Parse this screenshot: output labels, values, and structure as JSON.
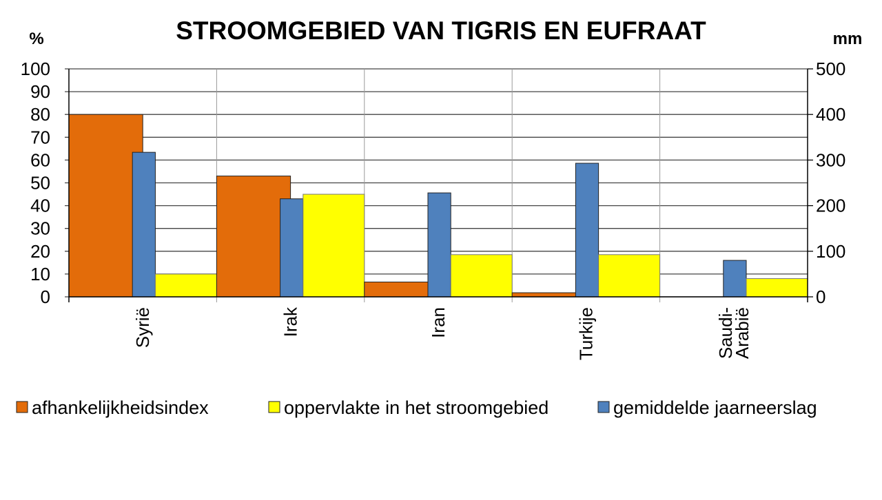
{
  "chart_data": {
    "type": "bar",
    "title": "STROOMGEBIED VAN TIGRIS EN EUFRAAT",
    "ylabel_left": "%",
    "ylabel_right": "mm",
    "ylim_left": [
      0,
      100
    ],
    "ylim_right": [
      0,
      500
    ],
    "yticks_left": [
      "0",
      "10",
      "20",
      "30",
      "40",
      "50",
      "60",
      "70",
      "80",
      "90",
      "100"
    ],
    "yticks_right": [
      "0",
      "100",
      "200",
      "300",
      "400",
      "500"
    ],
    "categories": [
      [
        "Syrië"
      ],
      [
        "Irak"
      ],
      [
        "Iran"
      ],
      [
        "Turkije"
      ],
      [
        "Saudi-",
        "Arabië"
      ]
    ],
    "series": [
      {
        "name": "afhankelijkheidsindex",
        "axis": "left",
        "color": "#E36C0A",
        "values": [
          80,
          53,
          6.5,
          1.8,
          0
        ]
      },
      {
        "name": "oppervlakte in het stroomgebied",
        "axis": "left",
        "color": "#FFFF00",
        "values": [
          10,
          45,
          18.5,
          18.5,
          8
        ]
      },
      {
        "name": "gemiddelde jaarneerslag",
        "axis": "right",
        "color": "#4F81BD",
        "values": [
          317,
          215,
          228,
          293,
          80
        ]
      }
    ],
    "grid": true,
    "legend": "bottom"
  }
}
